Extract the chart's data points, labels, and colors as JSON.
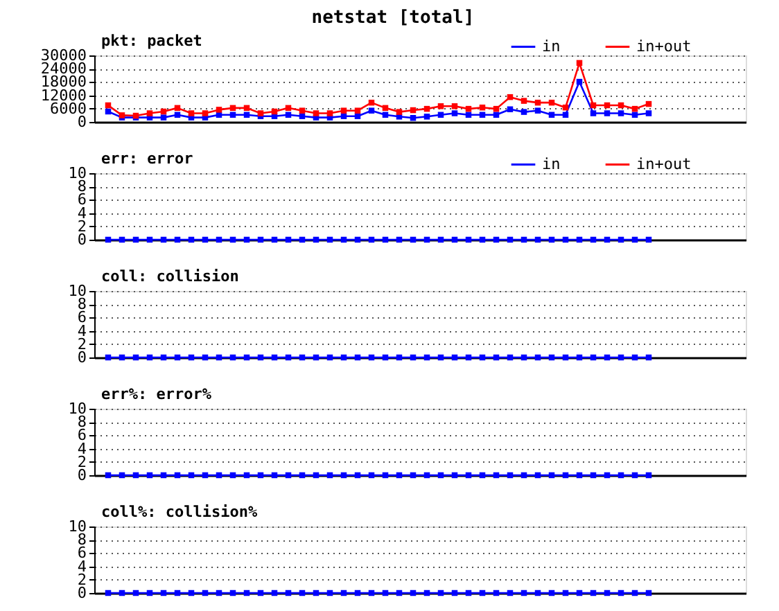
{
  "chart_data": [
    {
      "type": "line",
      "title": "netstat [total]",
      "subtitle": "pkt: packet",
      "categories": [
        null,
        null,
        null,
        null,
        null,
        null,
        null,
        null,
        null,
        null,
        null,
        null,
        null,
        null,
        null,
        null,
        null,
        null,
        null,
        null,
        null,
        null,
        null,
        null,
        null,
        null,
        null,
        null,
        null,
        null,
        null,
        null,
        null,
        null,
        null,
        null,
        null,
        null,
        null,
        null,
        null,
        null,
        null,
        null,
        null,
        null,
        null
      ],
      "series": [
        {
          "name": "in",
          "color": "#0000ff",
          "values": [
            4700,
            2000,
            2000,
            2000,
            2000,
            3200,
            2000,
            2000,
            3200,
            3200,
            3200,
            2600,
            2600,
            3200,
            2600,
            2000,
            2000,
            2600,
            2600,
            5100,
            3200,
            2400,
            1800,
            2400,
            3200,
            3900,
            3200,
            3200,
            3200,
            5700,
            4500,
            5100,
            3200,
            3200,
            18100,
            3900,
            3900,
            3900,
            3200,
            3900,
            null,
            null,
            null,
            null,
            null,
            null,
            null
          ]
        },
        {
          "name": "in+out",
          "color": "#ff0000",
          "values": [
            7500,
            3000,
            2800,
            3900,
            4700,
            6300,
            3900,
            3900,
            5500,
            6300,
            6300,
            3900,
            4700,
            6300,
            5100,
            3900,
            3900,
            5100,
            5100,
            8700,
            6300,
            4500,
            5300,
            5900,
            7100,
            7100,
            5900,
            6500,
            5900,
            11200,
            9500,
            8700,
            8700,
            6500,
            26600,
            7500,
            7500,
            7500,
            5900,
            8100,
            null,
            null,
            null,
            null,
            null,
            null,
            null
          ]
        }
      ],
      "ylim": [
        0,
        30000
      ],
      "yticks": [
        0,
        6000,
        12000,
        18000,
        24000,
        30000
      ],
      "grid": "y",
      "legend": "top right",
      "marker": "square",
      "tick_labels": "y"
    },
    {
      "type": "line",
      "title": "err: error",
      "categories": [
        null,
        null,
        null,
        null,
        null,
        null,
        null,
        null,
        null,
        null,
        null,
        null,
        null,
        null,
        null,
        null,
        null,
        null,
        null,
        null,
        null,
        null,
        null,
        null,
        null,
        null,
        null,
        null,
        null,
        null,
        null,
        null,
        null,
        null,
        null,
        null,
        null,
        null,
        null,
        null,
        null,
        null,
        null,
        null,
        null,
        null,
        null
      ],
      "series": [
        {
          "name": "in",
          "color": "#0000ff",
          "values": [
            0,
            0,
            0,
            0,
            0,
            0,
            0,
            0,
            0,
            0,
            0,
            0,
            0,
            0,
            0,
            0,
            0,
            0,
            0,
            0,
            0,
            0,
            0,
            0,
            0,
            0,
            0,
            0,
            0,
            0,
            0,
            0,
            0,
            0,
            0,
            0,
            0,
            0,
            0,
            0,
            null,
            null,
            null,
            null,
            null,
            null,
            null
          ]
        },
        {
          "name": "in+out",
          "color": "#ff0000",
          "values": [
            null,
            null,
            null,
            null,
            null,
            null,
            null,
            null,
            null,
            null,
            null,
            null,
            null,
            null,
            null,
            null,
            null,
            null,
            null,
            null,
            null,
            null,
            null,
            null,
            null,
            null,
            null,
            null,
            null,
            null,
            null,
            null,
            null,
            null,
            null,
            null,
            null,
            null,
            null,
            null,
            null,
            null,
            null,
            null,
            null,
            null,
            null
          ]
        }
      ],
      "ylim": [
        0,
        10
      ],
      "yticks": [
        0,
        2,
        4,
        6,
        8,
        10
      ],
      "grid": "y",
      "legend": "top right",
      "marker": "square",
      "tick_labels": "y"
    },
    {
      "type": "line",
      "title": "coll: collision",
      "categories": [
        null,
        null,
        null,
        null,
        null,
        null,
        null,
        null,
        null,
        null,
        null,
        null,
        null,
        null,
        null,
        null,
        null,
        null,
        null,
        null,
        null,
        null,
        null,
        null,
        null,
        null,
        null,
        null,
        null,
        null,
        null,
        null,
        null,
        null,
        null,
        null,
        null,
        null,
        null,
        null,
        null,
        null,
        null,
        null,
        null,
        null,
        null
      ],
      "series": [
        {
          "color": "#0000ff",
          "values": [
            0,
            0,
            0,
            0,
            0,
            0,
            0,
            0,
            0,
            0,
            0,
            0,
            0,
            0,
            0,
            0,
            0,
            0,
            0,
            0,
            0,
            0,
            0,
            0,
            0,
            0,
            0,
            0,
            0,
            0,
            0,
            0,
            0,
            0,
            0,
            0,
            0,
            0,
            0,
            0,
            null,
            null,
            null,
            null,
            null,
            null,
            null
          ]
        }
      ],
      "ylim": [
        0,
        10
      ],
      "yticks": [
        0,
        2,
        4,
        6,
        8,
        10
      ],
      "grid": "y",
      "marker": "square",
      "tick_labels": "y"
    },
    {
      "type": "line",
      "title": "err%: error%",
      "categories": [
        null,
        null,
        null,
        null,
        null,
        null,
        null,
        null,
        null,
        null,
        null,
        null,
        null,
        null,
        null,
        null,
        null,
        null,
        null,
        null,
        null,
        null,
        null,
        null,
        null,
        null,
        null,
        null,
        null,
        null,
        null,
        null,
        null,
        null,
        null,
        null,
        null,
        null,
        null,
        null,
        null,
        null,
        null,
        null,
        null,
        null,
        null
      ],
      "series": [
        {
          "color": "#0000ff",
          "values": [
            0,
            0,
            0,
            0,
            0,
            0,
            0,
            0,
            0,
            0,
            0,
            0,
            0,
            0,
            0,
            0,
            0,
            0,
            0,
            0,
            0,
            0,
            0,
            0,
            0,
            0,
            0,
            0,
            0,
            0,
            0,
            0,
            0,
            0,
            0,
            0,
            0,
            0,
            0,
            0,
            null,
            null,
            null,
            null,
            null,
            null,
            null
          ]
        }
      ],
      "ylim": [
        0,
        10
      ],
      "yticks": [
        0,
        2,
        4,
        6,
        8,
        10
      ],
      "grid": "y",
      "marker": "square",
      "tick_labels": "y"
    },
    {
      "type": "line",
      "title": "coll%: collision%",
      "categories": [
        null,
        null,
        null,
        null,
        null,
        null,
        null,
        null,
        null,
        null,
        null,
        null,
        null,
        null,
        null,
        null,
        null,
        null,
        null,
        null,
        null,
        null,
        null,
        null,
        null,
        null,
        null,
        null,
        null,
        null,
        null,
        null,
        null,
        null,
        null,
        null,
        null,
        null,
        null,
        null,
        null,
        null,
        null,
        null,
        null,
        null,
        null
      ],
      "series": [
        {
          "color": "#0000ff",
          "values": [
            0,
            0,
            0,
            0,
            0,
            0,
            0,
            0,
            0,
            0,
            0,
            0,
            0,
            0,
            0,
            0,
            0,
            0,
            0,
            0,
            0,
            0,
            0,
            0,
            0,
            0,
            0,
            0,
            0,
            0,
            0,
            0,
            0,
            0,
            0,
            0,
            0,
            0,
            0,
            0,
            null,
            null,
            null,
            null,
            null,
            null,
            null
          ]
        }
      ],
      "ylim": [
        0,
        10
      ],
      "yticks": [
        0,
        2,
        4,
        6,
        8,
        10
      ],
      "grid": "y",
      "marker": "square",
      "tick_labels": "y"
    }
  ]
}
